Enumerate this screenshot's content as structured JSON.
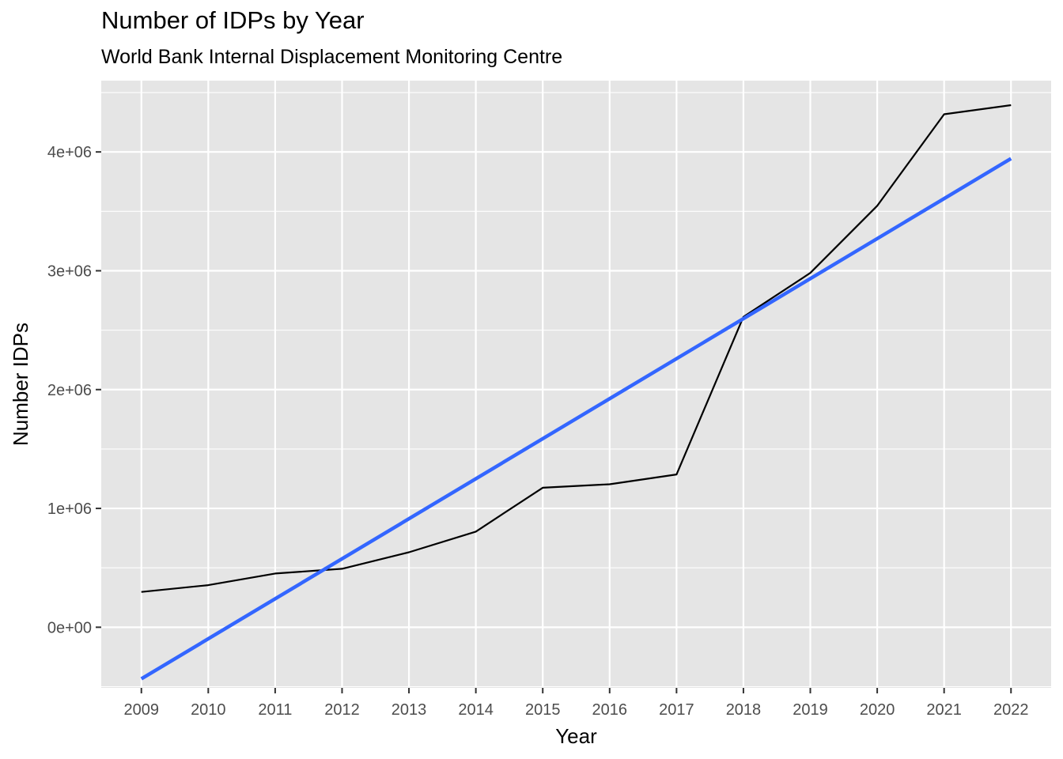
{
  "chart_data": {
    "type": "line",
    "title": "Number of IDPs by Year",
    "subtitle": "World Bank Internal Displacement Monitoring Centre",
    "xlabel": "Year",
    "ylabel": "Number IDPs",
    "x": [
      2009,
      2010,
      2011,
      2012,
      2013,
      2014,
      2015,
      2016,
      2017,
      2018,
      2019,
      2020,
      2021,
      2022
    ],
    "x_tick_labels": [
      "2009",
      "2010",
      "2011",
      "2012",
      "2013",
      "2014",
      "2015",
      "2016",
      "2017",
      "2018",
      "2019",
      "2020",
      "2021",
      "2022"
    ],
    "y_tick_values": [
      0,
      1000000,
      2000000,
      3000000,
      4000000
    ],
    "y_tick_labels": [
      "0e+00",
      "1e+06",
      "2e+06",
      "3e+06",
      "4e+06"
    ],
    "xlim": [
      2008.4,
      2022.6
    ],
    "ylim": [
      -510000,
      4600000
    ],
    "grid": true,
    "background": "#e5e5e5",
    "series": [
      {
        "kind": "line",
        "color": "#000000",
        "values": [
          297000,
          354000,
          452000,
          492000,
          631000,
          805000,
          1174000,
          1203000,
          1286000,
          2612000,
          2982000,
          3547000,
          4317000,
          4394000
        ]
      },
      {
        "kind": "trend",
        "color": "#3366ff",
        "values": [
          -434000,
          -91000,
          252000,
          595000,
          938000,
          1281000,
          1624000,
          1967000,
          2310000,
          2653000,
          2996000,
          3339000,
          3682000,
          3944000
        ],
        "endpoints": [
          [
            2009,
            -434000
          ],
          [
            2022,
            3944000
          ]
        ]
      }
    ]
  }
}
